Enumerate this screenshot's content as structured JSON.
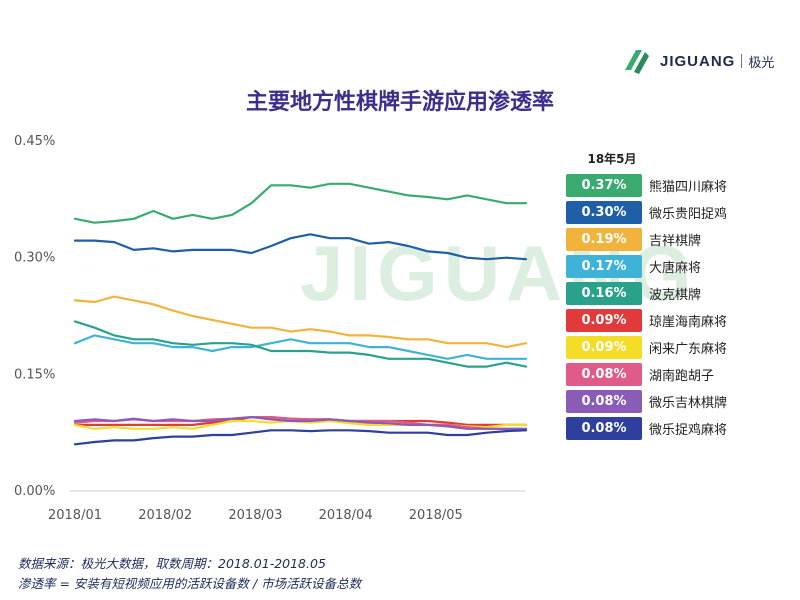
{
  "brand": {
    "name": "JIGUANG",
    "name_cn": "极光",
    "watermark": "JIGUANG"
  },
  "colors": {
    "title": "#3f2d8c",
    "watermark": "#dbeee0",
    "grid": "#e6e6e6"
  },
  "notes": {
    "source": "数据来源：极光大数据，取数周期：2018.01-2018.05",
    "definition": "渗透率 = 安装有短视频应用的活跃设备数 / 市场活跃设备总数"
  },
  "chart_data": {
    "type": "line",
    "title": "主要地方性棋牌手游应用渗透率",
    "legend_title": "18年5月",
    "y_unit": "%",
    "ylim": [
      0,
      0.45
    ],
    "yticks": [
      0,
      0.15,
      0.3,
      0.45
    ],
    "ytick_labels": [
      "0.00%",
      "0.15%",
      "0.30%",
      "0.45%"
    ],
    "xlim": [
      0,
      5
    ],
    "xticks": [
      0,
      1,
      2,
      3,
      4
    ],
    "xtick_labels": [
      "2018/01",
      "2018/02",
      "2018/03",
      "2018/04",
      "2018/05"
    ],
    "legend_position": "right",
    "grid": false,
    "series": [
      {
        "name": "熊猫四川麻将",
        "latest": "0.37%",
        "color": "#3aab6e",
        "values": [
          0.35,
          0.345,
          0.347,
          0.35,
          0.36,
          0.35,
          0.355,
          0.35,
          0.355,
          0.37,
          0.393,
          0.393,
          0.39,
          0.395,
          0.395,
          0.39,
          0.385,
          0.38,
          0.378,
          0.375,
          0.38,
          0.375,
          0.37,
          0.37
        ]
      },
      {
        "name": "微乐贵阳捉鸡",
        "latest": "0.30%",
        "color": "#1f5fa8",
        "values": [
          0.322,
          0.322,
          0.32,
          0.31,
          0.312,
          0.308,
          0.31,
          0.31,
          0.31,
          0.306,
          0.315,
          0.325,
          0.33,
          0.325,
          0.325,
          0.318,
          0.32,
          0.315,
          0.308,
          0.306,
          0.3,
          0.298,
          0.3,
          0.298
        ]
      },
      {
        "name": "吉祥棋牌",
        "latest": "0.19%",
        "color": "#f2b33d",
        "values": [
          0.245,
          0.243,
          0.25,
          0.245,
          0.24,
          0.232,
          0.225,
          0.22,
          0.215,
          0.21,
          0.21,
          0.205,
          0.208,
          0.205,
          0.2,
          0.2,
          0.198,
          0.195,
          0.195,
          0.19,
          0.19,
          0.19,
          0.185,
          0.19
        ]
      },
      {
        "name": "大唐麻将",
        "latest": "0.17%",
        "color": "#3fb2d8",
        "values": [
          0.19,
          0.2,
          0.195,
          0.19,
          0.19,
          0.185,
          0.185,
          0.18,
          0.185,
          0.185,
          0.19,
          0.195,
          0.19,
          0.19,
          0.19,
          0.185,
          0.185,
          0.18,
          0.175,
          0.17,
          0.175,
          0.17,
          0.17,
          0.17
        ]
      },
      {
        "name": "波克棋牌",
        "latest": "0.16%",
        "color": "#2aa18a",
        "values": [
          0.218,
          0.21,
          0.2,
          0.195,
          0.195,
          0.19,
          0.188,
          0.19,
          0.19,
          0.188,
          0.18,
          0.18,
          0.18,
          0.178,
          0.178,
          0.175,
          0.17,
          0.17,
          0.17,
          0.165,
          0.16,
          0.16,
          0.165,
          0.16
        ]
      },
      {
        "name": "琼崖海南麻将",
        "latest": "0.09%",
        "color": "#e03a3a",
        "values": [
          0.085,
          0.085,
          0.085,
          0.085,
          0.085,
          0.085,
          0.085,
          0.088,
          0.09,
          0.095,
          0.095,
          0.093,
          0.092,
          0.092,
          0.09,
          0.09,
          0.09,
          0.09,
          0.09,
          0.088,
          0.085,
          0.085,
          0.085,
          0.085
        ]
      },
      {
        "name": "闲来广东麻将",
        "latest": "0.09%",
        "color": "#f5dd27",
        "values": [
          0.085,
          0.08,
          0.082,
          0.08,
          0.08,
          0.082,
          0.08,
          0.085,
          0.09,
          0.09,
          0.088,
          0.09,
          0.088,
          0.09,
          0.087,
          0.085,
          0.085,
          0.085,
          0.085,
          0.085,
          0.083,
          0.082,
          0.085,
          0.085
        ]
      },
      {
        "name": "湖南跑胡子",
        "latest": "0.08%",
        "color": "#e05a8a",
        "values": [
          0.088,
          0.09,
          0.09,
          0.092,
          0.09,
          0.09,
          0.09,
          0.092,
          0.093,
          0.095,
          0.095,
          0.093,
          0.092,
          0.092,
          0.09,
          0.09,
          0.09,
          0.088,
          0.085,
          0.085,
          0.082,
          0.08,
          0.08,
          0.08
        ]
      },
      {
        "name": "微乐吉林棋牌",
        "latest": "0.08%",
        "color": "#8a5cb8",
        "values": [
          0.09,
          0.092,
          0.09,
          0.093,
          0.09,
          0.092,
          0.09,
          0.09,
          0.093,
          0.095,
          0.092,
          0.09,
          0.09,
          0.092,
          0.09,
          0.088,
          0.087,
          0.085,
          0.085,
          0.083,
          0.08,
          0.08,
          0.08,
          0.08
        ]
      },
      {
        "name": "微乐捉鸡麻将",
        "latest": "0.08%",
        "color": "#2e3f9e",
        "values": [
          0.06,
          0.063,
          0.065,
          0.065,
          0.068,
          0.07,
          0.07,
          0.072,
          0.072,
          0.075,
          0.078,
          0.078,
          0.077,
          0.078,
          0.078,
          0.077,
          0.075,
          0.075,
          0.075,
          0.072,
          0.072,
          0.075,
          0.077,
          0.078
        ]
      }
    ]
  }
}
